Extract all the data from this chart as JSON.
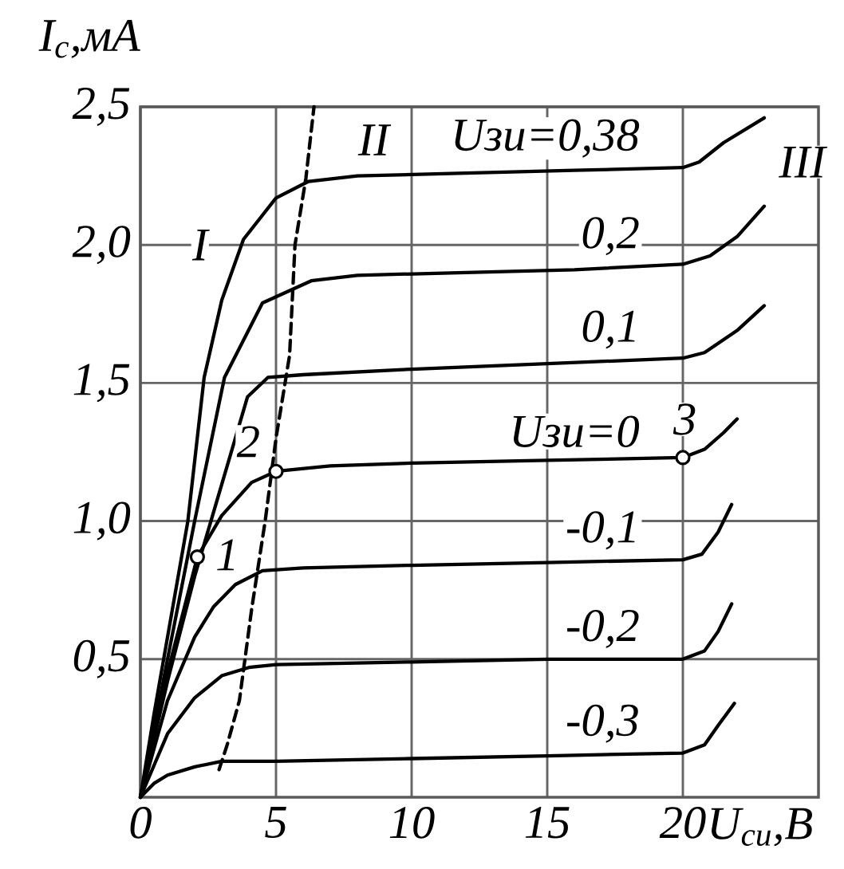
{
  "chart_data": {
    "type": "line",
    "xlabel": "U$_{си}$,В",
    "ylabel": "I$_{с}$,мА",
    "xlim": [
      0,
      25
    ],
    "ylim": [
      0,
      2.5
    ],
    "xticks": [
      0,
      5,
      10,
      15,
      20
    ],
    "yticks": [
      {
        "value": 0.5,
        "label": "0,5"
      },
      {
        "value": 1.0,
        "label": "1,0"
      },
      {
        "value": 1.5,
        "label": "1,5"
      },
      {
        "value": 2.0,
        "label": "2,0"
      },
      {
        "value": 2.5,
        "label": "2,5"
      }
    ],
    "grid": true,
    "series": [
      {
        "name": "Uзи=0,38",
        "color": "#000000",
        "x": [
          0,
          0.5,
          1,
          1.75,
          2.35,
          3,
          3.8,
          5,
          6.2,
          8,
          12,
          16,
          20,
          20.6,
          21.5,
          23
        ],
        "values": [
          0,
          0.3,
          0.58,
          1.0,
          1.52,
          1.8,
          2.02,
          2.17,
          2.23,
          2.25,
          2.26,
          2.27,
          2.28,
          2.3,
          2.37,
          2.46
        ]
      },
      {
        "name": "0,2",
        "color": "#000000",
        "x": [
          0,
          1,
          2,
          3.1,
          4.5,
          6.3,
          8,
          12,
          16,
          20,
          21,
          22,
          23
        ],
        "values": [
          0,
          0.5,
          1.0,
          1.52,
          1.79,
          1.87,
          1.89,
          1.9,
          1.91,
          1.93,
          1.96,
          2.03,
          2.14
        ]
      },
      {
        "name": "0,1",
        "color": "#000000",
        "x": [
          0,
          1,
          2,
          2.6,
          3.95,
          4.7,
          6,
          10,
          15,
          20,
          20.8,
          22,
          23
        ],
        "values": [
          0,
          0.42,
          0.8,
          1.0,
          1.45,
          1.52,
          1.53,
          1.55,
          1.57,
          1.59,
          1.61,
          1.69,
          1.78
        ]
      },
      {
        "name": "Uзи=0",
        "color": "#000000",
        "x": [
          0,
          1,
          2.1,
          3,
          4.1,
          5,
          7,
          10,
          15,
          20,
          20.8,
          21.5,
          22
        ],
        "values": [
          0,
          0.45,
          0.87,
          1.02,
          1.14,
          1.18,
          1.2,
          1.21,
          1.22,
          1.23,
          1.26,
          1.32,
          1.37
        ]
      },
      {
        "name": "-0,1",
        "color": "#000000",
        "x": [
          0,
          1,
          2,
          2.7,
          3.5,
          4.5,
          6,
          10,
          15,
          20,
          20.7,
          21.3,
          21.8
        ],
        "values": [
          0,
          0.35,
          0.58,
          0.69,
          0.77,
          0.82,
          0.83,
          0.84,
          0.85,
          0.86,
          0.88,
          0.96,
          1.06
        ]
      },
      {
        "name": "-0,2",
        "color": "#000000",
        "x": [
          0,
          1,
          2,
          3,
          4,
          5,
          10,
          15,
          20,
          20.8,
          21.3,
          21.8
        ],
        "values": [
          0,
          0.23,
          0.36,
          0.44,
          0.47,
          0.48,
          0.49,
          0.5,
          0.5,
          0.53,
          0.6,
          0.7
        ]
      },
      {
        "name": "-0,3",
        "color": "#000000",
        "x": [
          0,
          0.5,
          1,
          2,
          3,
          5,
          10,
          15,
          20,
          20.8,
          21.3,
          21.9
        ],
        "values": [
          0,
          0.05,
          0.08,
          0.11,
          0.13,
          0.13,
          0.14,
          0.15,
          0.16,
          0.19,
          0.26,
          0.34
        ]
      },
      {
        "type": "line",
        "line_style": "dashed",
        "color": "#000000",
        "x": [
          2.9,
          3.2,
          3.65,
          4.1,
          4.6,
          5.0,
          5.5,
          5.7,
          6.1,
          6.4
        ],
        "values": [
          0.1,
          0.19,
          0.35,
          0.68,
          1.0,
          1.3,
          1.6,
          2.0,
          2.24,
          2.5
        ]
      },
      {
        "type": "scatter",
        "marker": "circle",
        "color": "#000000",
        "x": [
          2.1,
          5,
          20
        ],
        "values": [
          0.87,
          1.18,
          1.23
        ]
      }
    ],
    "annotations": [
      "I",
      "II",
      "III",
      {
        "text": "1",
        "x": 2.1,
        "y": 0.87
      },
      {
        "text": "2",
        "x": 5,
        "y": 1.18
      },
      {
        "text": "3",
        "x": 20,
        "y": 1.23
      }
    ]
  }
}
